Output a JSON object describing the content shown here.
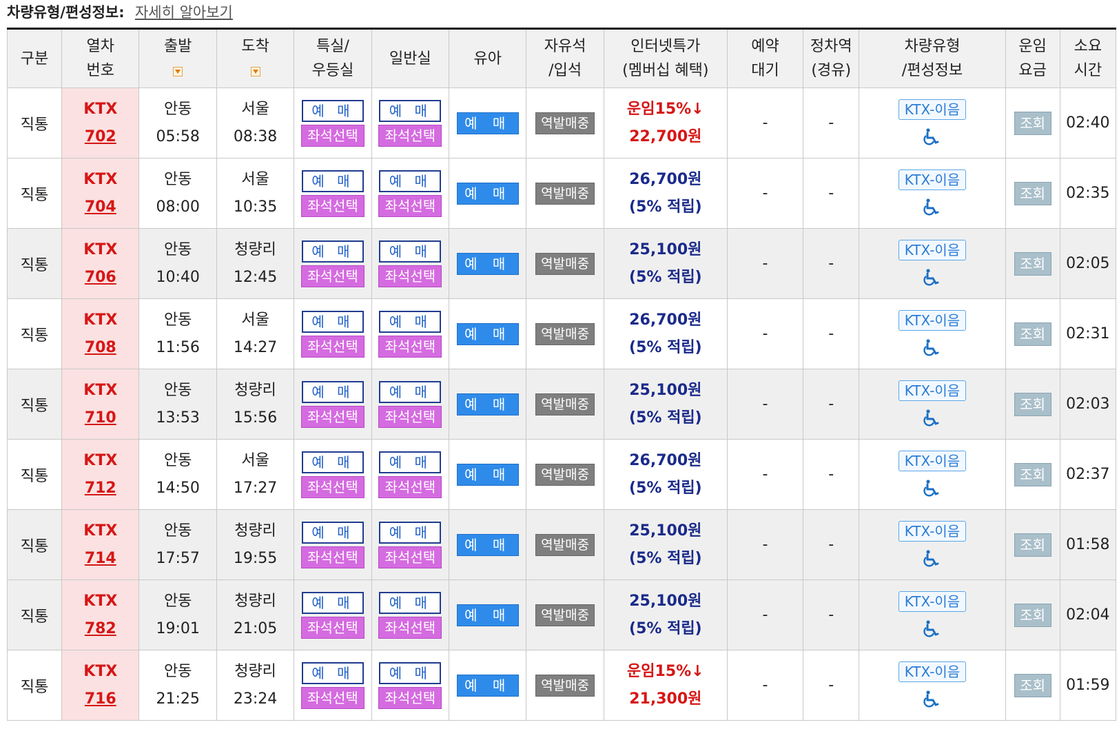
{
  "caption": {
    "label": "차량유형/편성정보:",
    "link": "자세히 알아보기"
  },
  "headers": {
    "category": "구분",
    "train": [
      "열차",
      "번호"
    ],
    "depart": "출발",
    "arrive": "도착",
    "special": [
      "특실/",
      "우등실"
    ],
    "general": "일반실",
    "infant": "유아",
    "free": [
      "자유석",
      "/입석"
    ],
    "internet": [
      "인터넷특가",
      "(멤버십 혜택)"
    ],
    "waitlist": [
      "예약",
      "대기"
    ],
    "stops": [
      "정차역",
      "(경유)"
    ],
    "vehicle": [
      "차량유형",
      "/편성정보"
    ],
    "fare": [
      "운임",
      "요금"
    ],
    "duration": [
      "소요",
      "시간"
    ]
  },
  "labels": {
    "book": "예 매",
    "seat_select": "좌석선택",
    "infant_book": "예 매",
    "station_sale": "역발매중",
    "vehicle_type": "KTX-이음",
    "lookup": "조회",
    "dash": "-"
  },
  "rows": [
    {
      "category": "직통",
      "train_type": "KTX",
      "train_no": "702",
      "dep_station": "안동",
      "dep_time": "05:58",
      "arr_station": "서울",
      "arr_time": "08:38",
      "fare_mode": "discount",
      "fare_line1": "운임15%↓",
      "fare_line2": "22,700원",
      "waitlist": "-",
      "stops": "-",
      "duration": "02:40",
      "shade": false
    },
    {
      "category": "직통",
      "train_type": "KTX",
      "train_no": "704",
      "dep_station": "안동",
      "dep_time": "08:00",
      "arr_station": "서울",
      "arr_time": "10:35",
      "fare_mode": "member",
      "fare_line1": "26,700원",
      "fare_line2": "(5% 적립)",
      "waitlist": "-",
      "stops": "-",
      "duration": "02:35",
      "shade": false
    },
    {
      "category": "직통",
      "train_type": "KTX",
      "train_no": "706",
      "dep_station": "안동",
      "dep_time": "10:40",
      "arr_station": "청량리",
      "arr_time": "12:45",
      "fare_mode": "member",
      "fare_line1": "25,100원",
      "fare_line2": "(5% 적립)",
      "waitlist": "-",
      "stops": "-",
      "duration": "02:05",
      "shade": true
    },
    {
      "category": "직통",
      "train_type": "KTX",
      "train_no": "708",
      "dep_station": "안동",
      "dep_time": "11:56",
      "arr_station": "서울",
      "arr_time": "14:27",
      "fare_mode": "member",
      "fare_line1": "26,700원",
      "fare_line2": "(5% 적립)",
      "waitlist": "-",
      "stops": "-",
      "duration": "02:31",
      "shade": false
    },
    {
      "category": "직통",
      "train_type": "KTX",
      "train_no": "710",
      "dep_station": "안동",
      "dep_time": "13:53",
      "arr_station": "청량리",
      "arr_time": "15:56",
      "fare_mode": "member",
      "fare_line1": "25,100원",
      "fare_line2": "(5% 적립)",
      "waitlist": "-",
      "stops": "-",
      "duration": "02:03",
      "shade": true
    },
    {
      "category": "직통",
      "train_type": "KTX",
      "train_no": "712",
      "dep_station": "안동",
      "dep_time": "14:50",
      "arr_station": "서울",
      "arr_time": "17:27",
      "fare_mode": "member",
      "fare_line1": "26,700원",
      "fare_line2": "(5% 적립)",
      "waitlist": "-",
      "stops": "-",
      "duration": "02:37",
      "shade": false
    },
    {
      "category": "직통",
      "train_type": "KTX",
      "train_no": "714",
      "dep_station": "안동",
      "dep_time": "17:57",
      "arr_station": "청량리",
      "arr_time": "19:55",
      "fare_mode": "member",
      "fare_line1": "25,100원",
      "fare_line2": "(5% 적립)",
      "waitlist": "-",
      "stops": "-",
      "duration": "01:58",
      "shade": true
    },
    {
      "category": "직통",
      "train_type": "KTX",
      "train_no": "782",
      "dep_station": "안동",
      "dep_time": "19:01",
      "arr_station": "청량리",
      "arr_time": "21:05",
      "fare_mode": "member",
      "fare_line1": "25,100원",
      "fare_line2": "(5% 적립)",
      "waitlist": "-",
      "stops": "-",
      "duration": "02:04",
      "shade": true
    },
    {
      "category": "직통",
      "train_type": "KTX",
      "train_no": "716",
      "dep_station": "안동",
      "dep_time": "21:25",
      "arr_station": "청량리",
      "arr_time": "23:24",
      "fare_mode": "discount",
      "fare_line1": "운임15%↓",
      "fare_line2": "21,300원",
      "waitlist": "-",
      "stops": "-",
      "duration": "01:59",
      "shade": false
    }
  ],
  "colors": {
    "train_cell_bg": "#fbe1e1",
    "train_text": "#d61616",
    "seat_select_bg": "#d56be0",
    "infant_bg": "#2f8bea",
    "station_sale_bg": "#7f7f7f",
    "lookup_bg": "#a9bfca",
    "member_fare": "#1a2a8a"
  },
  "icons": {
    "sort": "sort-arrow-icon",
    "accessibility": "wheelchair-icon"
  }
}
